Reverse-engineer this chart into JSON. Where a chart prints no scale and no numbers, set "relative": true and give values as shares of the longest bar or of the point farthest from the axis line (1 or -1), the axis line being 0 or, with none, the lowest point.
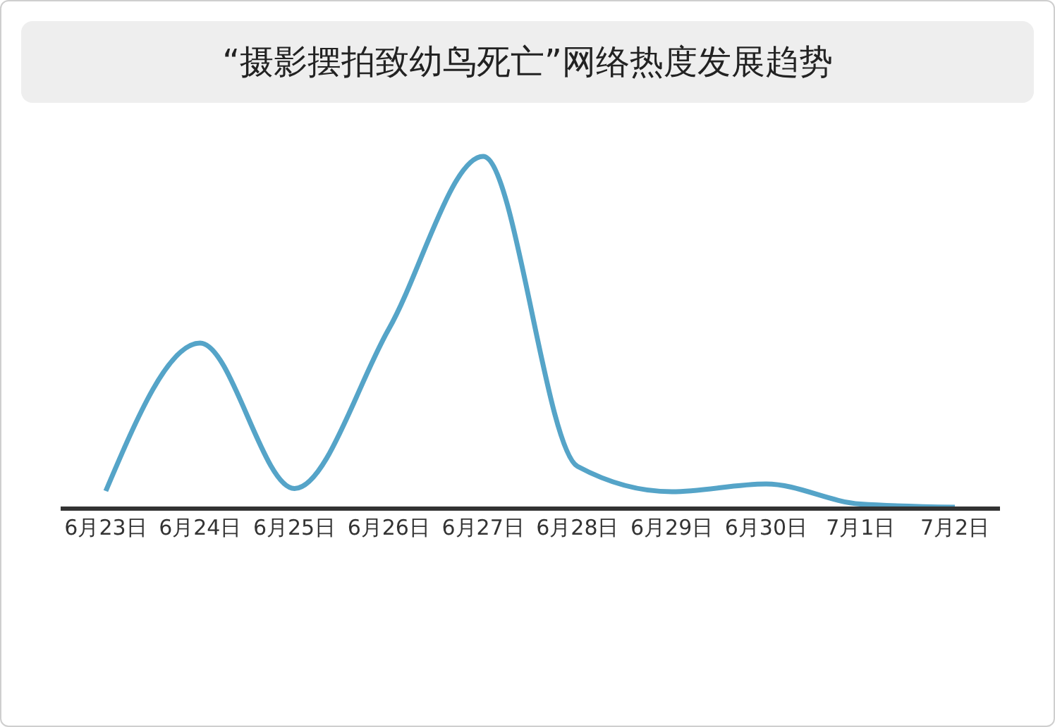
{
  "chart_data": {
    "type": "line",
    "title": "“摄影摆拍致幼鸟死亡”网络热度发展趋势",
    "relative": true,
    "categories": [
      "6月23日",
      "6月24日",
      "6月25日",
      "6月26日",
      "6月27日",
      "6月28日",
      "6月29日",
      "6月30日",
      "7月1日",
      "7月2日"
    ],
    "series": [
      {
        "color": "#55a4c8",
        "values": [
          0.05,
          0.47,
          0.057,
          0.51,
          1,
          0.12,
          0.048,
          0.07,
          0.013,
          0.004
        ]
      }
    ],
    "grid": false,
    "legend": false,
    "marker": "none",
    "line_style": "solid"
  }
}
